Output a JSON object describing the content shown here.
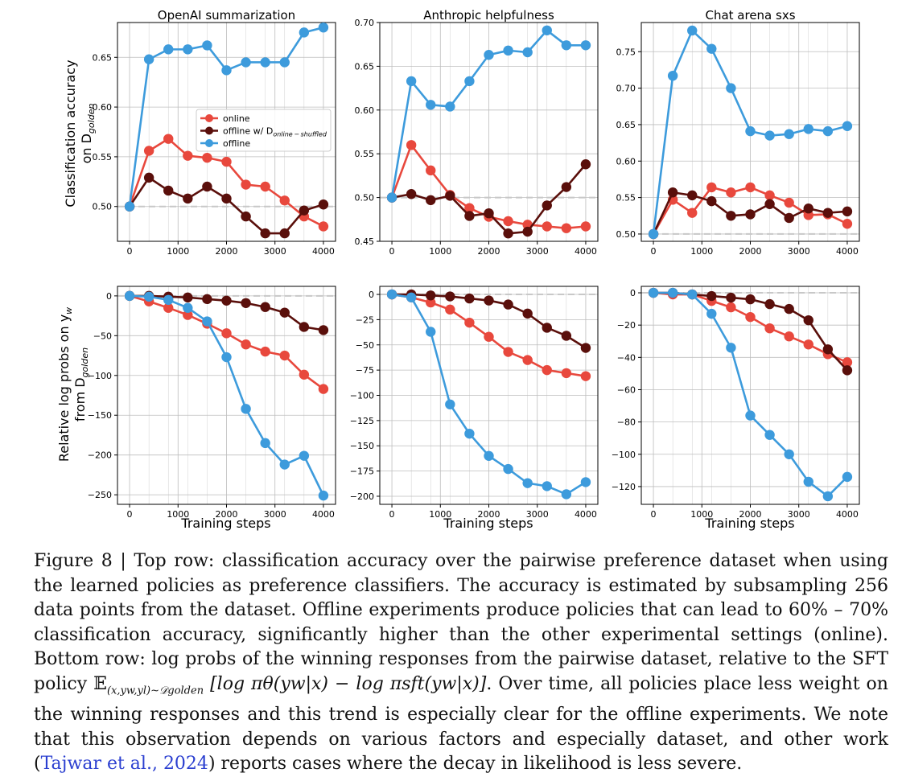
{
  "colors": {
    "online": "#e8483d",
    "offline_shuffled": "#5a0f0b",
    "offline": "#3d9bdc",
    "grid": "#bdbdbd",
    "baseline": "#c8c8c8"
  },
  "xlabel": "Training steps",
  "ylabel_top": [
    "Classification accuracy",
    "on D",
    "golden"
  ],
  "ylabel_bottom": [
    "Relative log probs on y",
    "w",
    "from D",
    "golden"
  ],
  "legend": [
    {
      "key": "online",
      "label": "online"
    },
    {
      "key": "offline_shuffled",
      "label": "offline w/ D",
      "sub": "online − shuffled"
    },
    {
      "key": "offline",
      "label": "offline"
    }
  ],
  "chart_data": [
    {
      "id": "top-0",
      "type": "line",
      "title": "OpenAI summarization",
      "x": [
        0,
        400,
        800,
        1200,
        1600,
        2000,
        2400,
        2800,
        3200,
        3600,
        4000
      ],
      "xticks": [
        0,
        1000,
        2000,
        3000,
        4000
      ],
      "xlim": [
        -250,
        4250
      ],
      "ylim": [
        0.465,
        0.685
      ],
      "yticks": [
        0.5,
        0.55,
        0.6,
        0.65
      ],
      "ytick_labels": [
        "0.50",
        "0.55",
        "0.60",
        "0.65"
      ],
      "baseline": 0.5,
      "legend": "center",
      "series": [
        {
          "key": "online",
          "name": "online",
          "values": [
            0.5,
            0.556,
            0.568,
            0.551,
            0.549,
            0.545,
            0.522,
            0.52,
            0.506,
            0.49,
            0.48
          ]
        },
        {
          "key": "offline_shuffled",
          "name": "offline w/ D online-shuffled",
          "values": [
            0.5,
            0.529,
            0.516,
            0.508,
            0.52,
            0.508,
            0.49,
            0.473,
            0.473,
            0.496,
            0.502
          ]
        },
        {
          "key": "offline",
          "name": "offline",
          "values": [
            0.5,
            0.648,
            0.658,
            0.658,
            0.662,
            0.637,
            0.645,
            0.645,
            0.645,
            0.675,
            0.68
          ]
        }
      ]
    },
    {
      "id": "top-1",
      "type": "line",
      "title": "Anthropic helpfulness",
      "x": [
        0,
        400,
        800,
        1200,
        1600,
        2000,
        2400,
        2800,
        3200,
        3600,
        4000
      ],
      "xticks": [
        0,
        1000,
        2000,
        3000,
        4000
      ],
      "xlim": [
        -250,
        4250
      ],
      "ylim": [
        0.45,
        0.7
      ],
      "yticks": [
        0.45,
        0.5,
        0.55,
        0.6,
        0.65,
        0.7
      ],
      "ytick_labels": [
        "0.45",
        "0.50",
        "0.55",
        "0.60",
        "0.65",
        "0.70"
      ],
      "baseline": 0.5,
      "series": [
        {
          "key": "online",
          "name": "online",
          "values": [
            0.5,
            0.56,
            0.531,
            0.503,
            0.488,
            0.478,
            0.473,
            0.469,
            0.467,
            0.465,
            0.467
          ]
        },
        {
          "key": "offline_shuffled",
          "name": "offline w/ D online-shuffled",
          "values": [
            0.5,
            0.504,
            0.497,
            0.502,
            0.479,
            0.482,
            0.459,
            0.461,
            0.491,
            0.512,
            0.538
          ]
        },
        {
          "key": "offline",
          "name": "offline",
          "values": [
            0.5,
            0.633,
            0.606,
            0.604,
            0.633,
            0.663,
            0.668,
            0.666,
            0.691,
            0.674,
            0.674
          ]
        }
      ]
    },
    {
      "id": "top-2",
      "type": "line",
      "title": "Chat arena sxs",
      "x": [
        0,
        400,
        800,
        1200,
        1600,
        2000,
        2400,
        2800,
        3200,
        3600,
        4000
      ],
      "xticks": [
        0,
        1000,
        2000,
        3000,
        4000
      ],
      "xlim": [
        -250,
        4250
      ],
      "ylim": [
        0.49,
        0.79
      ],
      "yticks": [
        0.5,
        0.55,
        0.6,
        0.65,
        0.7,
        0.75
      ],
      "ytick_labels": [
        "0.50",
        "0.55",
        "0.60",
        "0.65",
        "0.70",
        "0.75"
      ],
      "baseline": 0.5,
      "series": [
        {
          "key": "online",
          "name": "online",
          "values": [
            0.5,
            0.547,
            0.529,
            0.564,
            0.557,
            0.564,
            0.553,
            0.543,
            0.526,
            0.527,
            0.514
          ]
        },
        {
          "key": "offline_shuffled",
          "name": "offline w/ D online-shuffled",
          "values": [
            0.5,
            0.557,
            0.553,
            0.545,
            0.525,
            0.527,
            0.541,
            0.522,
            0.535,
            0.529,
            0.531
          ]
        },
        {
          "key": "offline",
          "name": "offline",
          "values": [
            0.5,
            0.717,
            0.779,
            0.754,
            0.7,
            0.641,
            0.635,
            0.637,
            0.644,
            0.641,
            0.648
          ]
        }
      ]
    },
    {
      "id": "bot-0",
      "type": "line",
      "title": "",
      "x": [
        0,
        400,
        800,
        1200,
        1600,
        2000,
        2400,
        2800,
        3200,
        3600,
        4000
      ],
      "xticks": [
        0,
        1000,
        2000,
        3000,
        4000
      ],
      "xlim": [
        -250,
        4250
      ],
      "ylim": [
        -262,
        12
      ],
      "yticks": [
        0,
        -50,
        -100,
        -150,
        -200,
        -250
      ],
      "ytick_labels": [
        "0",
        "−50",
        "−100",
        "−150",
        "−200",
        "−250"
      ],
      "baseline": 0,
      "series": [
        {
          "key": "online",
          "name": "online",
          "values": [
            0,
            -7,
            -15,
            -24,
            -35,
            -47,
            -61,
            -70,
            -75,
            -99,
            -117
          ]
        },
        {
          "key": "offline_shuffled",
          "name": "offline w/ D online-shuffled",
          "values": [
            0,
            0,
            -1,
            -2,
            -4,
            -6,
            -9,
            -14,
            -21,
            -39,
            -43
          ]
        },
        {
          "key": "offline",
          "name": "offline",
          "values": [
            0,
            -1,
            -5,
            -15,
            -32,
            -77,
            -142,
            -185,
            -212,
            -201,
            -251
          ]
        }
      ]
    },
    {
      "id": "bot-1",
      "type": "line",
      "title": "",
      "x": [
        0,
        400,
        800,
        1200,
        1600,
        2000,
        2400,
        2800,
        3200,
        3600,
        4000
      ],
      "xticks": [
        0,
        1000,
        2000,
        3000,
        4000
      ],
      "xlim": [
        -250,
        4250
      ],
      "ylim": [
        -208,
        8
      ],
      "yticks": [
        0,
        -25,
        -50,
        -75,
        -100,
        -125,
        -150,
        -175,
        -200
      ],
      "ytick_labels": [
        "0",
        "−25",
        "−50",
        "−75",
        "−100",
        "−125",
        "−150",
        "−175",
        "−200"
      ],
      "baseline": 0,
      "series": [
        {
          "key": "online",
          "name": "online",
          "values": [
            0,
            -3,
            -8,
            -15,
            -28,
            -42,
            -57,
            -65,
            -75,
            -78,
            -81
          ]
        },
        {
          "key": "offline_shuffled",
          "name": "offline w/ D online-shuffled",
          "values": [
            0,
            0,
            -1,
            -2,
            -4,
            -6,
            -10,
            -19,
            -33,
            -41,
            -53
          ]
        },
        {
          "key": "offline",
          "name": "offline",
          "values": [
            0,
            -3,
            -37,
            -109,
            -138,
            -160,
            -173,
            -187,
            -190,
            -198,
            -186
          ]
        }
      ]
    },
    {
      "id": "bot-2",
      "type": "line",
      "title": "",
      "x": [
        0,
        400,
        800,
        1200,
        1600,
        2000,
        2400,
        2800,
        3200,
        3600,
        4000
      ],
      "xticks": [
        0,
        1000,
        2000,
        3000,
        4000
      ],
      "xlim": [
        -250,
        4250
      ],
      "ylim": [
        -131,
        4
      ],
      "yticks": [
        0,
        -20,
        -40,
        -60,
        -80,
        -100,
        -120
      ],
      "ytick_labels": [
        "0",
        "−20",
        "−40",
        "−60",
        "−80",
        "−100",
        "−120"
      ],
      "baseline": 0,
      "series": [
        {
          "key": "online",
          "name": "online",
          "values": [
            0,
            -1,
            -1,
            -5,
            -9,
            -15,
            -22,
            -27,
            -32,
            -38,
            -43
          ]
        },
        {
          "key": "offline_shuffled",
          "name": "offline w/ D online-shuffled",
          "values": [
            0,
            0,
            -1,
            -2,
            -3,
            -4,
            -7,
            -10,
            -17,
            -35,
            -48
          ]
        },
        {
          "key": "offline",
          "name": "offline",
          "values": [
            0,
            0,
            -1,
            -13,
            -34,
            -76,
            -88,
            -100,
            -117,
            -126,
            -114
          ]
        }
      ]
    }
  ],
  "caption": {
    "label": "Figure 8 | ",
    "p1": "Top row: classification accuracy over the pairwise preference dataset when using the learned policies as preference classifiers. The accuracy is estimated by subsampling 256 data points from the dataset. Offline experiments produce policies that can lead to 60% – 70% classification accuracy, significantly higher than the other experimental settings (online). Bottom row: log probs of the winning responses from the pairwise dataset, relative to the SFT policy ",
    "expect": "𝔼",
    "expect_sub": "(x,yw,yl)∼𝒟golden",
    "formula": " [log πθ(yw|x) − log πsft(yw|x)]",
    "p2": ". Over time, all policies place less weight on the winning responses and this trend is especially clear for the offline experiments. We note that this observation depends on various factors and especially dataset, and other work (",
    "ref": "Tajwar et al., 2024",
    "p3": ") reports cases where the decay in likelihood is less severe."
  }
}
